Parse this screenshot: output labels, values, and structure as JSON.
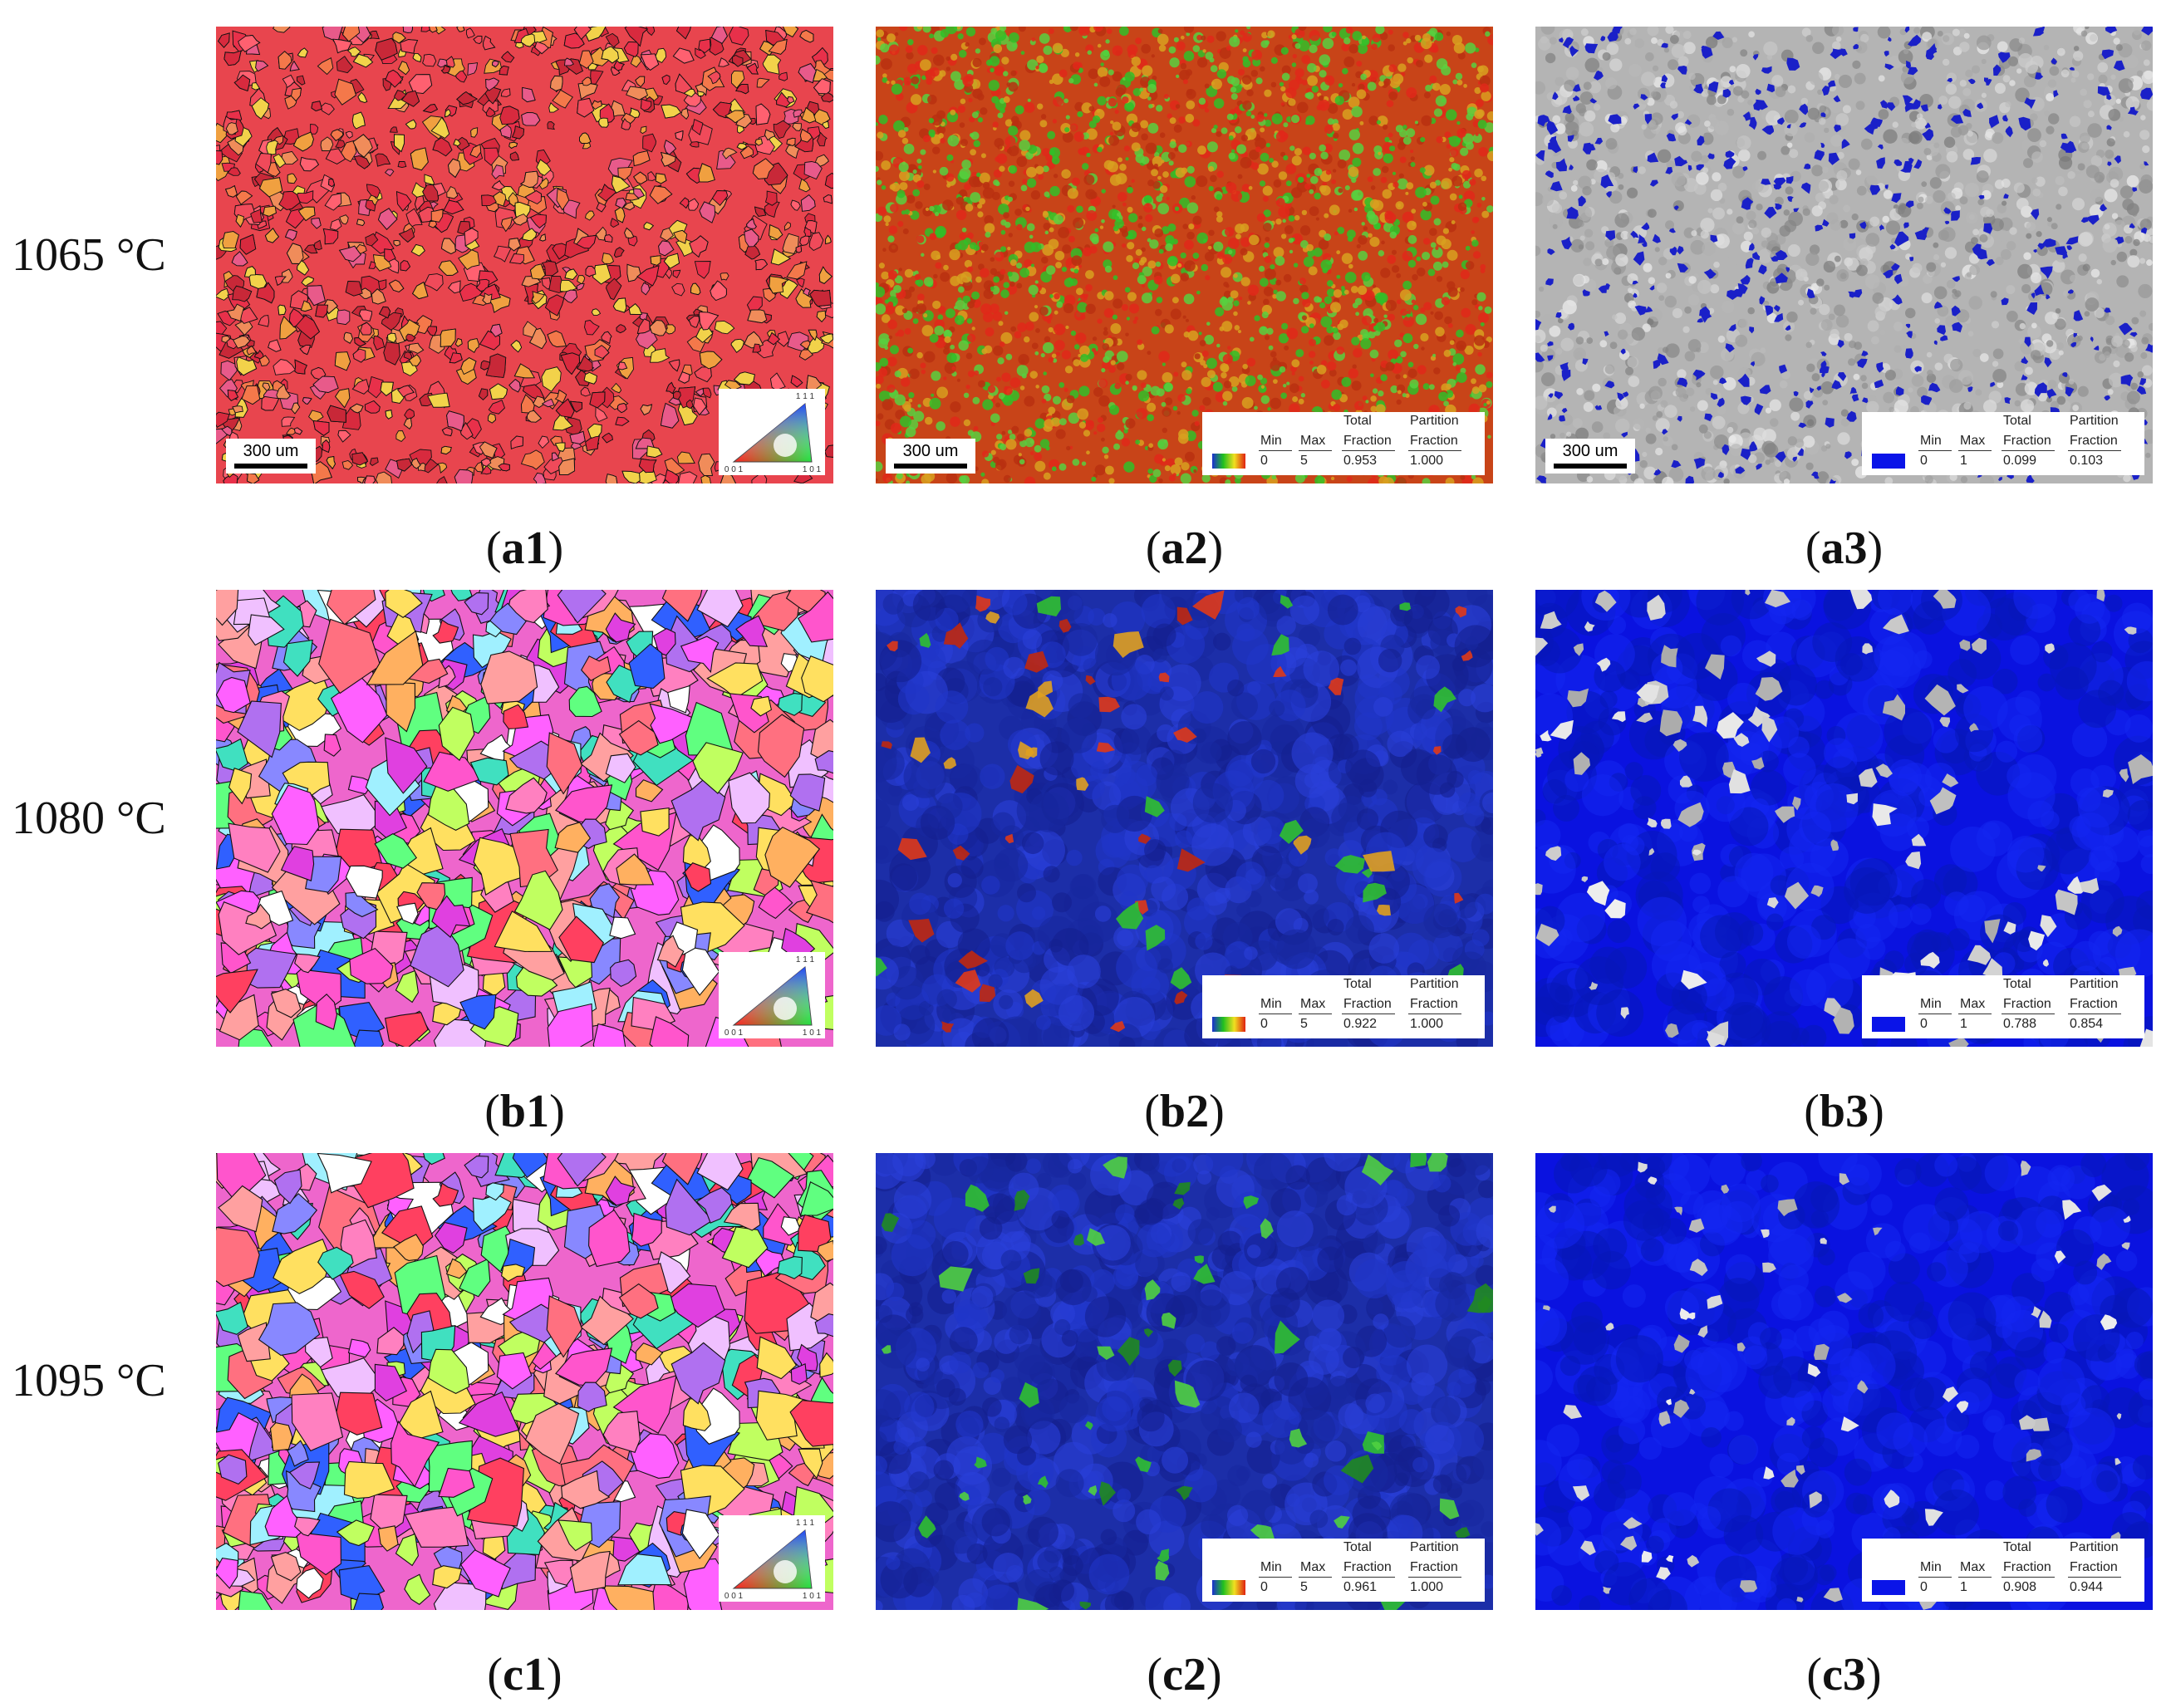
{
  "rows": [
    {
      "label": "1065 °C"
    },
    {
      "label": "1080 °C"
    },
    {
      "label": "1095 °C"
    }
  ],
  "panels": [
    {
      "id": "a1",
      "kind": "ipf",
      "caption_letter": "a",
      "caption_num": "1",
      "scale": "300 um",
      "ipf": {
        "top": "1 1 1",
        "left": "0 0 1",
        "right": "1 0 1"
      }
    },
    {
      "id": "a2",
      "kind": "kam",
      "caption_letter": "a",
      "caption_num": "2",
      "scale": "300 um",
      "legend": {
        "h_total": "Total",
        "h_partition": "Partition",
        "h_min": "Min",
        "h_max": "Max",
        "h_fraction": "Fraction",
        "h_fraction2": "Fraction",
        "min": "0",
        "max": "5",
        "total": "0.953",
        "partition": "1.000"
      }
    },
    {
      "id": "a3",
      "kind": "recx",
      "caption_letter": "a",
      "caption_num": "3",
      "scale": "300 um",
      "legend": {
        "h_total": "Total",
        "h_partition": "Partition",
        "h_min": "Min",
        "h_max": "Max",
        "h_fraction": "Fraction",
        "h_fraction2": "Fraction",
        "min": "0",
        "max": "1",
        "total": "0.099",
        "partition": "0.103"
      }
    },
    {
      "id": "b1",
      "kind": "ipf",
      "caption_letter": "b",
      "caption_num": "1",
      "ipf": {
        "top": "1 1 1",
        "left": "0 0 1",
        "right": "1 0 1"
      }
    },
    {
      "id": "b2",
      "kind": "kam",
      "caption_letter": "b",
      "caption_num": "2",
      "legend": {
        "h_total": "Total",
        "h_partition": "Partition",
        "h_min": "Min",
        "h_max": "Max",
        "h_fraction": "Fraction",
        "h_fraction2": "Fraction",
        "min": "0",
        "max": "5",
        "total": "0.922",
        "partition": "1.000"
      }
    },
    {
      "id": "b3",
      "kind": "recx",
      "caption_letter": "b",
      "caption_num": "3",
      "legend": {
        "h_total": "Total",
        "h_partition": "Partition",
        "h_min": "Min",
        "h_max": "Max",
        "h_fraction": "Fraction",
        "h_fraction2": "Fraction",
        "min": "0",
        "max": "1",
        "total": "0.788",
        "partition": "0.854"
      }
    },
    {
      "id": "c1",
      "kind": "ipf",
      "caption_letter": "c",
      "caption_num": "1",
      "ipf": {
        "top": "1 1 1",
        "left": "0 0 1",
        "right": "1 0 1"
      }
    },
    {
      "id": "c2",
      "kind": "kam",
      "caption_letter": "c",
      "caption_num": "2",
      "legend": {
        "h_total": "Total",
        "h_partition": "Partition",
        "h_min": "Min",
        "h_max": "Max",
        "h_fraction": "Fraction",
        "h_fraction2": "Fraction",
        "min": "0",
        "max": "5",
        "total": "0.961",
        "partition": "1.000"
      }
    },
    {
      "id": "c3",
      "kind": "recx",
      "caption_letter": "c",
      "caption_num": "3",
      "legend": {
        "h_total": "Total",
        "h_partition": "Partition",
        "h_min": "Min",
        "h_max": "Max",
        "h_fraction": "Fraction",
        "h_fraction2": "Fraction",
        "min": "0",
        "max": "1",
        "total": "0.908",
        "partition": "0.944"
      }
    }
  ],
  "colors": {
    "kam_low": "#1a2fd0",
    "kam_mid": "#20c020",
    "kam_high": "#e02010",
    "recx_blue": "#0a14e8",
    "recx_gray": "#b8b8b8"
  }
}
